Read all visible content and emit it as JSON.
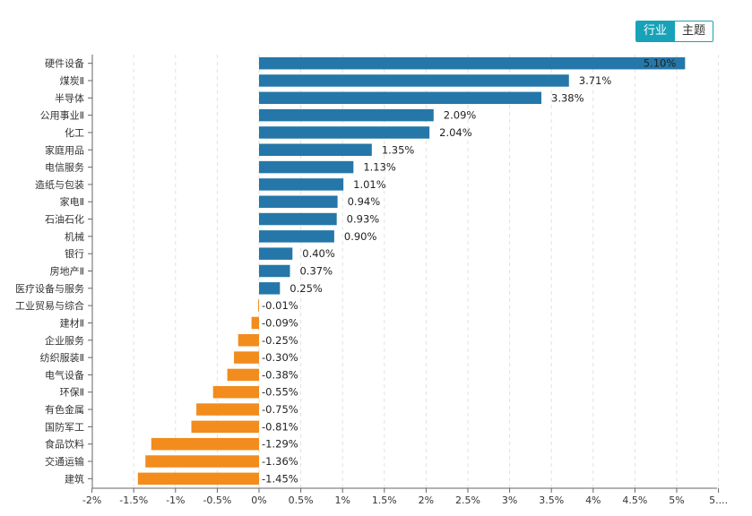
{
  "tabs": [
    {
      "label": "行业",
      "active": true
    },
    {
      "label": "主题",
      "active": false
    }
  ],
  "colors": {
    "positive": "#2477a8",
    "negative": "#f28c1d",
    "grid": "#e2e2e2",
    "axis": "#666666",
    "tab_active": "#17a2b8"
  },
  "chart_data": {
    "type": "bar",
    "orientation": "horizontal",
    "title": "",
    "xlabel": "",
    "ylabel": "",
    "xlim": [
      -2,
      5.3
    ],
    "x_ticks": [
      "-2%",
      "-1.5%",
      "-1%",
      "-0.5%",
      "0%",
      "0.5%",
      "1%",
      "1.5%",
      "2%",
      "2.5%",
      "3%",
      "3.5%",
      "4%",
      "4.5%",
      "5%",
      "5...."
    ],
    "grid": true,
    "categories": [
      "硬件设备",
      "煤炭Ⅱ",
      "半导体",
      "公用事业Ⅱ",
      "化工",
      "家庭用品",
      "电信服务",
      "造纸与包装",
      "家电Ⅱ",
      "石油石化",
      "机械",
      "银行",
      "房地产Ⅱ",
      "医疗设备与服务",
      "工业贸易与综合",
      "建材Ⅱ",
      "企业服务",
      "纺织服装Ⅱ",
      "电气设备",
      "环保Ⅱ",
      "有色金属",
      "国防军工",
      "食品饮料",
      "交通运输",
      "建筑"
    ],
    "values": [
      5.1,
      3.71,
      3.38,
      2.09,
      2.04,
      1.35,
      1.13,
      1.01,
      0.94,
      0.93,
      0.9,
      0.4,
      0.37,
      0.25,
      -0.01,
      -0.09,
      -0.25,
      -0.3,
      -0.38,
      -0.55,
      -0.75,
      -0.81,
      -1.29,
      -1.36,
      -1.45
    ],
    "labels": [
      "5.10%",
      "3.71%",
      "3.38%",
      "2.09%",
      "2.04%",
      "1.35%",
      "1.13%",
      "1.01%",
      "0.94%",
      "0.93%",
      "0.90%",
      "0.40%",
      "0.37%",
      "0.25%",
      "-0.01%",
      "-0.09%",
      "-0.25%",
      "-0.30%",
      "-0.38%",
      "-0.55%",
      "-0.75%",
      "-0.81%",
      "-1.29%",
      "-1.36%",
      "-1.45%"
    ]
  }
}
